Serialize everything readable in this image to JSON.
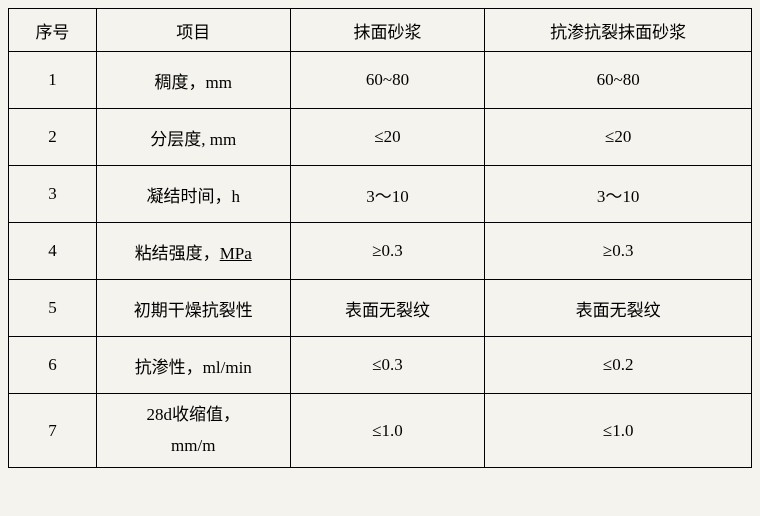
{
  "table": {
    "headers": {
      "seq": "序号",
      "item": "项目",
      "mortar1": "抹面砂浆",
      "mortar2": "抗渗抗裂抹面砂浆"
    },
    "rows": [
      {
        "seq": "1",
        "item": "稠度，mm",
        "mortar1": "60~80",
        "mortar2": "60~80"
      },
      {
        "seq": "2",
        "item": "分层度, mm",
        "mortar1": "≤20",
        "mortar2": "≤20"
      },
      {
        "seq": "3",
        "item": "凝结时间，h",
        "mortar1": "3～10",
        "mortar2": "3～10"
      },
      {
        "seq": "4",
        "item_prefix": "粘结强度，",
        "item_underlined": "MPa",
        "mortar1": "≥0.3",
        "mortar2": "≥0.3"
      },
      {
        "seq": "5",
        "item": "初期干燥抗裂性",
        "mortar1": "表面无裂纹",
        "mortar2": "表面无裂纹"
      },
      {
        "seq": "6",
        "item": "抗渗性，ml/min",
        "mortar1": "≤0.3",
        "mortar2": "≤0.2"
      },
      {
        "seq": "7",
        "item_line1": "28d收缩值，",
        "item_line2": "mm/m",
        "mortar1": "≤1.0",
        "mortar2": "≤1.0"
      }
    ],
    "styling": {
      "border_color": "#000000",
      "background_color": "#f5f3ee",
      "text_color": "#000000",
      "font_family": "SimSun",
      "header_font_size": 17,
      "body_font_size": 17,
      "col_widths": {
        "seq": 88,
        "item": 194,
        "mortar1": 195,
        "mortar2": 267
      },
      "header_row_height": 43,
      "data_row_height": 57,
      "tall_row_height": 74
    }
  }
}
